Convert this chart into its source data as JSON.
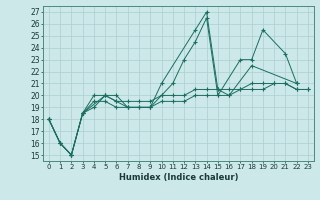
{
  "xlabel": "Humidex (Indice chaleur)",
  "xlim": [
    -0.5,
    23.5
  ],
  "ylim": [
    14.5,
    27.5
  ],
  "xticks": [
    0,
    1,
    2,
    3,
    4,
    5,
    6,
    7,
    8,
    9,
    10,
    11,
    12,
    13,
    14,
    15,
    16,
    17,
    18,
    19,
    20,
    21,
    22,
    23
  ],
  "yticks": [
    15,
    16,
    17,
    18,
    19,
    20,
    21,
    22,
    23,
    24,
    25,
    26,
    27
  ],
  "bg_color": "#cce8e8",
  "line_color": "#1a6e60",
  "grid_color": "#aacfcf",
  "lines": [
    {
      "x": [
        0,
        1,
        2,
        3,
        5,
        6,
        7,
        9,
        10,
        13,
        14,
        15,
        16,
        18,
        22
      ],
      "y": [
        18,
        16,
        15,
        18.5,
        20,
        20,
        19,
        19,
        21,
        25.5,
        27,
        20.5,
        20,
        22.5,
        21
      ]
    },
    {
      "x": [
        0,
        1,
        2,
        3,
        4,
        5,
        6,
        7,
        8,
        9,
        10,
        11,
        12,
        13,
        14,
        15,
        17,
        18,
        19,
        21,
        22
      ],
      "y": [
        18,
        16,
        15,
        18.5,
        19,
        20,
        19.5,
        19,
        19,
        19,
        20,
        21,
        23,
        24.5,
        26.5,
        20,
        23,
        23,
        25.5,
        23.5,
        21
      ]
    },
    {
      "x": [
        0,
        1,
        2,
        3,
        4,
        5,
        6,
        7,
        8,
        9,
        10,
        11,
        12,
        13,
        14,
        15,
        16,
        17,
        18,
        19,
        20,
        21,
        22,
        23
      ],
      "y": [
        18,
        16,
        15,
        18.5,
        20,
        20,
        19.5,
        19.5,
        19.5,
        19.5,
        20,
        20,
        20,
        20.5,
        20.5,
        20.5,
        20.5,
        20.5,
        21,
        21,
        21,
        21,
        20.5,
        20.5
      ]
    },
    {
      "x": [
        0,
        1,
        2,
        3,
        4,
        5,
        6,
        7,
        8,
        9,
        10,
        11,
        12,
        13,
        14,
        15,
        16,
        17,
        18,
        19,
        20,
        21,
        22,
        23
      ],
      "y": [
        18,
        16,
        15,
        18.5,
        19.5,
        19.5,
        19,
        19,
        19,
        19,
        19.5,
        19.5,
        19.5,
        20,
        20,
        20,
        20,
        20.5,
        20.5,
        20.5,
        21,
        21,
        20.5,
        20.5
      ]
    }
  ]
}
